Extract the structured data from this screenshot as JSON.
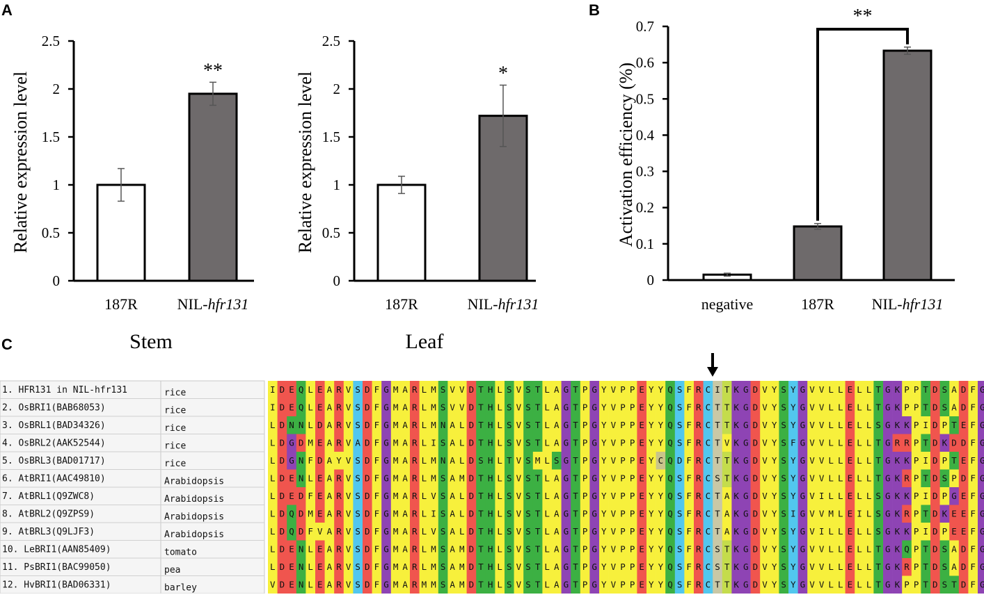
{
  "panels": {
    "a": "A",
    "b": "B",
    "c": "C"
  },
  "chart_data": [
    {
      "type": "bar",
      "title": "",
      "tissue": "Stem",
      "ylabel": "Relative expression level",
      "ylim": [
        0,
        2.5
      ],
      "yticks": [
        "0",
        "0.5",
        "1",
        "1.5",
        "2",
        "2.5"
      ],
      "categories": [
        "187R",
        "NIL-hfr131"
      ],
      "category_parts": [
        [
          "187R",
          ""
        ],
        [
          "NIL-",
          "hfr131"
        ]
      ],
      "values": [
        1.0,
        1.95
      ],
      "errors": [
        0.17,
        0.12
      ],
      "bar_fill": [
        "#ffffff",
        "#6e6a6b"
      ],
      "significance": [
        "",
        "**"
      ]
    },
    {
      "type": "bar",
      "title": "",
      "tissue": "Leaf",
      "ylabel": "Relative expression  level",
      "ylim": [
        0,
        2.5
      ],
      "yticks": [
        "0",
        "0.5",
        "1",
        "1.5",
        "2",
        "2.5"
      ],
      "categories": [
        "187R",
        "NIL-hfr131"
      ],
      "category_parts": [
        [
          "187R",
          ""
        ],
        [
          "NIL-",
          "hfr131"
        ]
      ],
      "values": [
        1.0,
        1.72
      ],
      "errors": [
        0.09,
        0.32
      ],
      "bar_fill": [
        "#ffffff",
        "#6e6a6b"
      ],
      "significance": [
        "",
        "*"
      ]
    },
    {
      "type": "bar",
      "title": "",
      "ylabel": "Activation efficiency  (%)",
      "ylim": [
        0,
        0.7
      ],
      "yticks": [
        "0",
        "0.1",
        "0.2",
        "0.3",
        "0.4",
        "0.5",
        "0.6",
        "0.7"
      ],
      "categories": [
        "negative",
        "187R",
        "NIL-hfr131"
      ],
      "category_parts": [
        [
          "negative",
          ""
        ],
        [
          "187R",
          ""
        ],
        [
          "NIL-",
          "hfr131"
        ]
      ],
      "values": [
        0.015,
        0.148,
        0.633
      ],
      "errors": [
        0.004,
        0.008,
        0.01
      ],
      "bar_fill": [
        "#ffffff",
        "#6e6a6b",
        "#6e6a6b"
      ],
      "significance_bracket": {
        "from": 1,
        "to": 2,
        "label": "**"
      }
    }
  ],
  "alignment": {
    "arrow_column": 31,
    "colors": {
      "red": "#f0554e",
      "green": "#3cb043",
      "yellow": "#f7f03c",
      "blue": "#52c7ee",
      "purple": "#8e44b4",
      "gray": "#c9c8a6",
      "khaki": "#c8c48a",
      "lime": "#c4dc4c"
    },
    "rows": [
      {
        "label": "1.  HFR131 in NIL-hfr131",
        "species": "rice",
        "seq": "IDEQLEARVSDFGMARLMSVVDTHLSVSTLAGTPGYVPPEYYQSFRCITKGDVYSYGVVLLELLTGKPPTDSADFG"
      },
      {
        "label": "2.  OsBRI1(BAB68053)",
        "species": "rice",
        "seq": "IDEQLEARVSDFGMARLMSVVDTHLSVSTLAGTPGYVPPEYYQSFRCTTKGDVYSYGVVLLELLTGKPPTDSADFG"
      },
      {
        "label": "3.  OsBRL1(BAD34326)",
        "species": "rice",
        "seq": "LDNNLDARVSDFGMARLMNALDTHLSVSTLAGTPGYVPPEYYQSFRCTTKGDVYSYGVVLLELLSGKKPIDPTEFG"
      },
      {
        "label": "4.  OsBRL2(AAK52544)",
        "species": "rice",
        "seq": "LDGDMEARVADFGMARLISALDTHLSVSTLAGTPGYVPPEYYQSFRCTVKGDVYSFGVVLLELLTGRRPTDKDDFG"
      },
      {
        "label": "5.  OsBRL3(BAD01717)",
        "species": "rice",
        "seq": "LDGNFDAYVSDFGMARLMNALDSHLTVSMLSGTPGYVPPEYCQDFRCTTKGDVYSYGVVLLELLTGKKPIDPTEFG"
      },
      {
        "label": "6.  AtBRI1(AAC49810)",
        "species": "Arabidopsis",
        "seq": "LDENLEARVSDFGMARLMSAMDTHLSVSTLAGTPGYVPPEYYQSFRCSTKGDVYSYGVVLLELLTGKRPTDSPDFG"
      },
      {
        "label": "7.  AtBRL1(Q9ZWC8)",
        "species": "Arabidopsis",
        "seq": "LDEDFEARVSDFGMARLVSALDTHLSVSTLAGTPGYVPPEYYQSFRCTAKGDVYSYGVILLELLSGKKPIDPGEFG"
      },
      {
        "label": "8.  AtBRL2(Q9ZPS9)",
        "species": "Arabidopsis",
        "seq": "LDQDMEARVSDFGMARLISALDTHLSVSTLAGTPGYVPPEYYQSFRCTAKGDVYSIGVVMLEILSGKRPTDKEEFG"
      },
      {
        "label": "9.  AtBRL3(Q9LJF3)",
        "species": "Arabidopsis",
        "seq": "LDQDFVARVSDFGMARLVSALDTHLSVSTLAGTPGYVPPEYYQSFRCTAKGDVYSYGVILLELLSGKKPIDPEEFG"
      },
      {
        "label": "10.  LeBRI1(AAN85409)",
        "species": "tomato",
        "seq": "LDENLEARVSDFGMARLMSAMDTHLSVSTLAGTPGYVPPEYYQSFRCSTKGDVYSYGVVLLELLTGKQPTDSADFG"
      },
      {
        "label": "11.  PsBRI1(BAC99050)",
        "species": "pea",
        "seq": "LDENLEARVSDFGMARLMSAMDTHLSVSTLAGTPGYVPPEYYQSFRCSTKGDVYSYGVVLLELLTGKRPTDSADFG"
      },
      {
        "label": "12.  HvBRI1(BAD06331)",
        "species": "barley",
        "seq": "VDENLEARVSDFGMARMMSAMDTHLSVSTLAGTPGYVPPEYYQSFRCTTKGDVYSYGVVLLELLTGKPPTDSTDFG"
      }
    ]
  }
}
